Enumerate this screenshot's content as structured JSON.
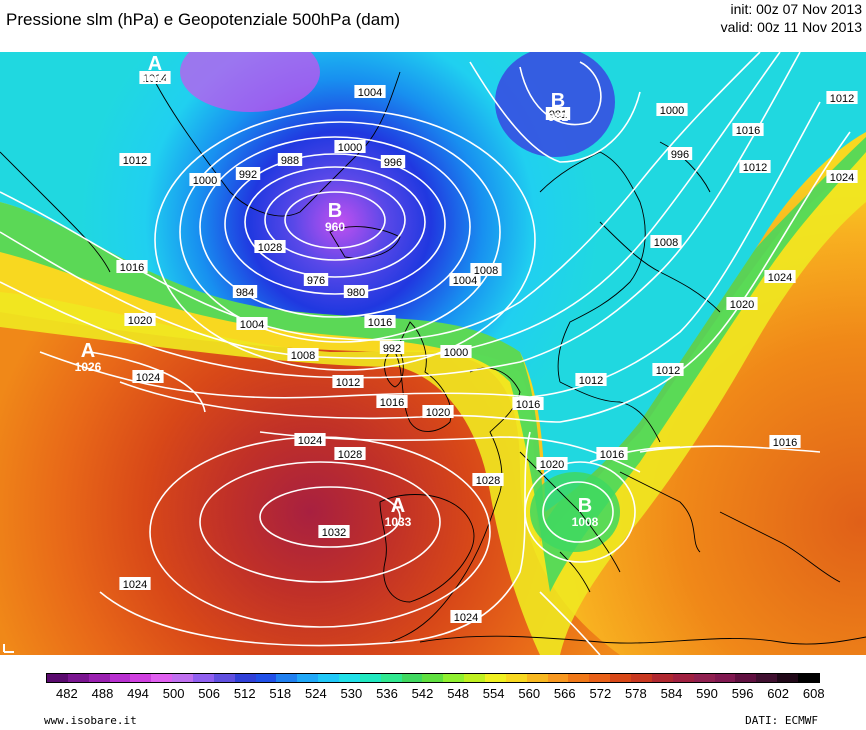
{
  "header": {
    "title": "Pressione slm (hPa) e Geopotenziale 500hPa (dam)",
    "init": "init: 00z 07 Nov 2013",
    "valid": "valid: 00z 11 Nov 2013"
  },
  "legend": {
    "ticks": [
      "482",
      "488",
      "494",
      "500",
      "506",
      "512",
      "518",
      "524",
      "530",
      "536",
      "542",
      "548",
      "554",
      "560",
      "566",
      "572",
      "578",
      "584",
      "590",
      "596",
      "602",
      "608"
    ],
    "colors": [
      "#5a0a6e",
      "#7a1590",
      "#9a20b0",
      "#b830d0",
      "#d040e0",
      "#e060f0",
      "#c070f0",
      "#9060f0",
      "#6050e0",
      "#3040d8",
      "#2050e8",
      "#2080f0",
      "#20a8f8",
      "#20c8f8",
      "#20e0e8",
      "#20e8c0",
      "#30e890",
      "#40d860",
      "#60e040",
      "#90f030",
      "#c0f020",
      "#f0f020",
      "#f8d820",
      "#f8b820",
      "#f89820",
      "#f07818",
      "#e86018",
      "#d84818",
      "#c83820",
      "#b02830",
      "#a02040",
      "#902050",
      "#801850",
      "#601040",
      "#401030",
      "#200818",
      "#000000"
    ]
  },
  "centers": [
    {
      "letter": "A",
      "value": "1014"
    },
    {
      "letter": "B",
      "value": "981"
    },
    {
      "letter": "B",
      "value": "960"
    },
    {
      "letter": "A",
      "value": "1026"
    },
    {
      "letter": "A",
      "value": "1033"
    },
    {
      "letter": "B",
      "value": "1008"
    }
  ],
  "isobar_labels": [
    "1014",
    "1012",
    "1000",
    "992",
    "988",
    "1004",
    "1000",
    "996",
    "981",
    "1000",
    "996",
    "1016",
    "1012",
    "1024",
    "1028",
    "976",
    "980",
    "984",
    "1004",
    "1004",
    "1008",
    "1012",
    "1016",
    "1020",
    "1016",
    "1024",
    "1020",
    "1016",
    "992",
    "1000",
    "1008",
    "1012",
    "1016",
    "1020",
    "1024",
    "1028",
    "1032",
    "1024",
    "1028",
    "1024",
    "1020",
    "1016",
    "1016",
    "1012",
    "1024",
    "1008",
    "1012"
  ],
  "footer": {
    "website": "www.isobare.it",
    "source": "DATI: ECMWF"
  }
}
